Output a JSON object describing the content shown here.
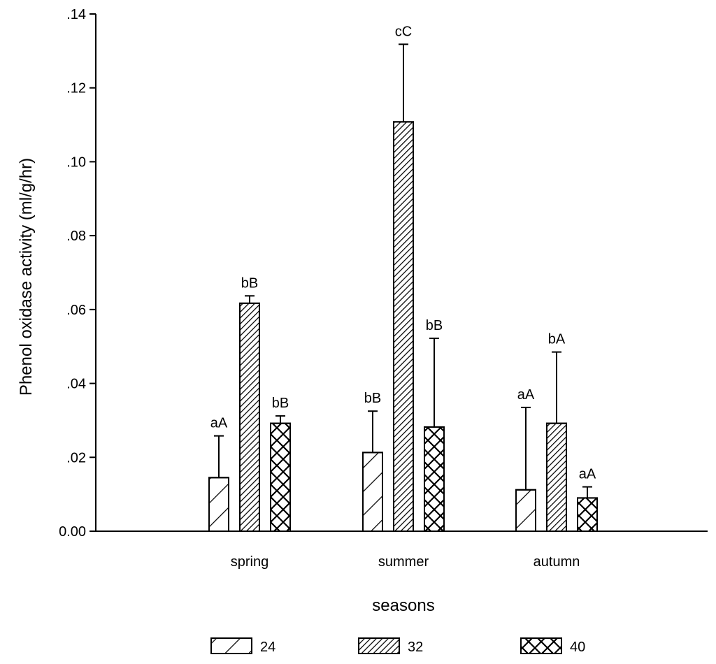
{
  "chart_data": {
    "type": "bar",
    "ylabel": "Phenol oxidase activity (ml/g/hr)",
    "xlabel": "seasons",
    "ylim": [
      0,
      0.14
    ],
    "y_ticks": [
      {
        "value": 0.0,
        "label": "0.00"
      },
      {
        "value": 0.02,
        "label": ".02"
      },
      {
        "value": 0.04,
        "label": ".04"
      },
      {
        "value": 0.06,
        "label": ".06"
      },
      {
        "value": 0.08,
        "label": ".08"
      },
      {
        "value": 0.1,
        "label": ".10"
      },
      {
        "value": 0.12,
        "label": ".12"
      },
      {
        "value": 0.14,
        "label": ".14"
      }
    ],
    "categories": [
      "spring",
      "summer",
      "autumn"
    ],
    "series": [
      {
        "name": "24",
        "pattern": "single-hatch",
        "values": [
          0.0145,
          0.0213,
          0.0112
        ],
        "errors": [
          0.0113,
          0.0112,
          0.0223
        ],
        "letters": [
          "aA",
          "bB",
          "aA"
        ]
      },
      {
        "name": "32",
        "pattern": "dense-hatch",
        "values": [
          0.0617,
          0.1108,
          0.0292
        ],
        "errors": [
          0.002,
          0.021,
          0.0193
        ],
        "letters": [
          "bB",
          "cC",
          "bA"
        ]
      },
      {
        "name": "40",
        "pattern": "cross-hatch",
        "values": [
          0.0292,
          0.0282,
          0.009
        ],
        "errors": [
          0.002,
          0.024,
          0.003
        ],
        "letters": [
          "bB",
          "bB",
          "aA"
        ]
      }
    ],
    "grid": false,
    "legend_position": "bottom"
  }
}
